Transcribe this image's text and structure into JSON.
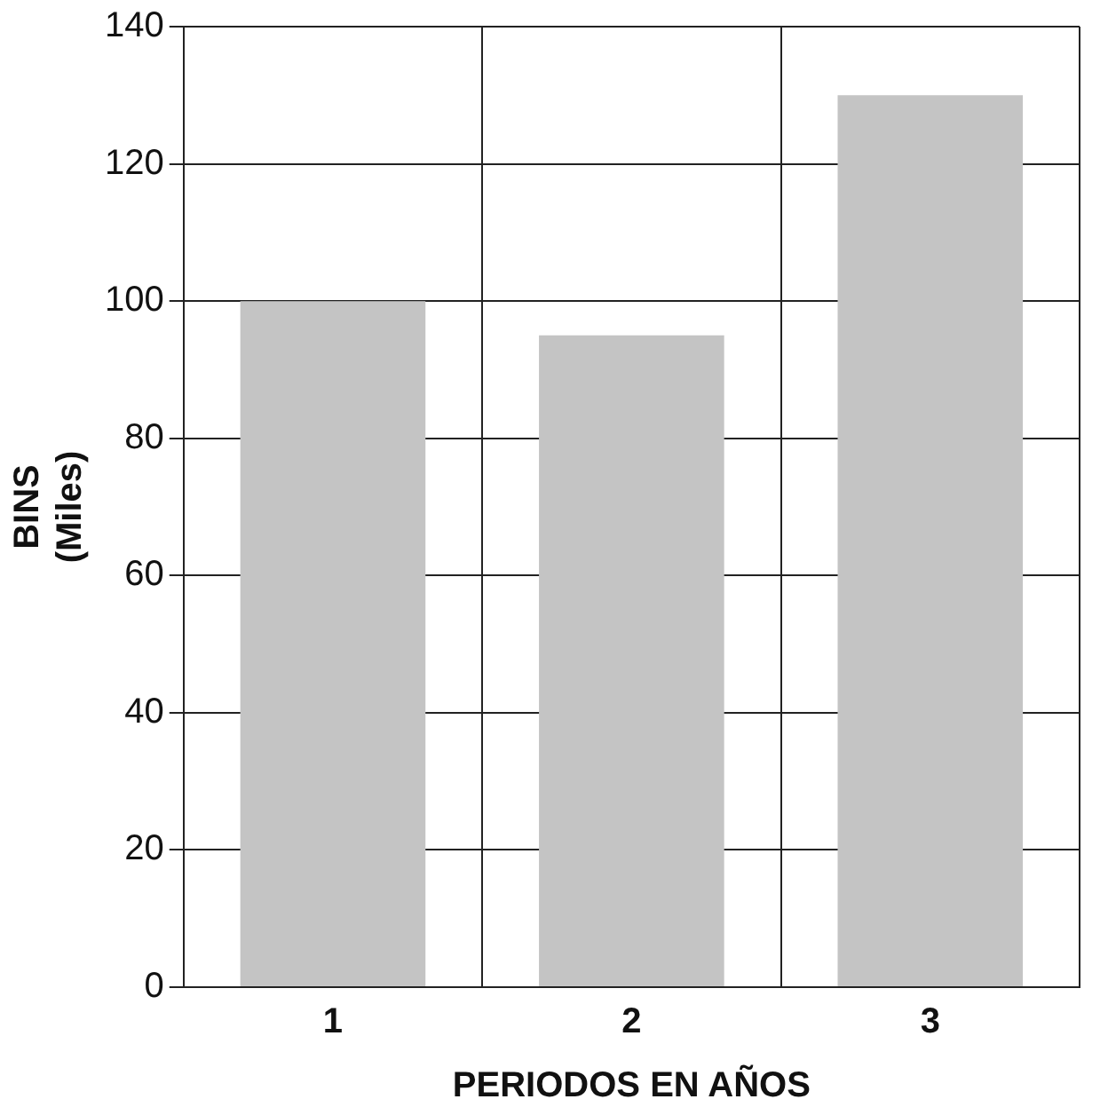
{
  "chart_data": {
    "type": "bar",
    "xlabel": "PERIODOS EN AÑOS",
    "ylabel": "BINS (Miles)",
    "categories": [
      "1",
      "2",
      "3"
    ],
    "values": [
      100,
      95,
      130
    ],
    "color": "#c4c4c4",
    "ylim": [
      0,
      140
    ],
    "yticks": [
      0,
      20,
      40,
      60,
      80,
      100,
      120,
      140
    ],
    "grid": true
  }
}
